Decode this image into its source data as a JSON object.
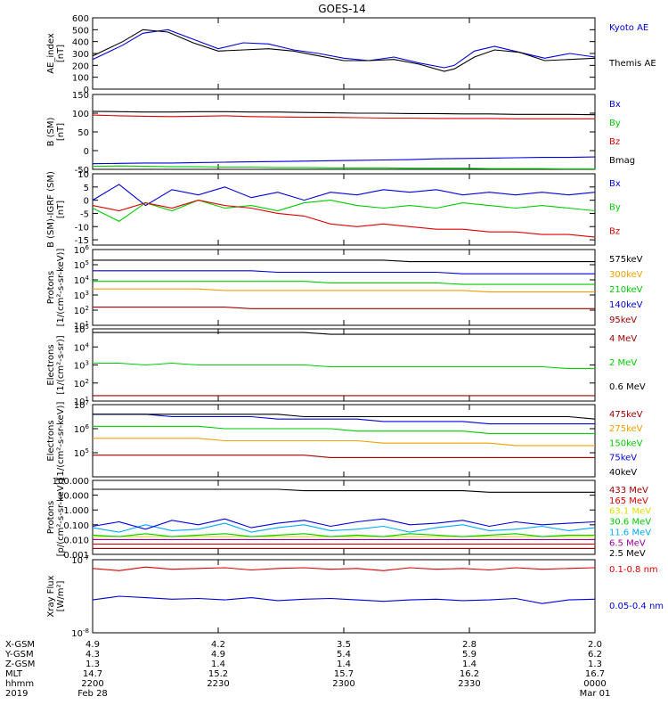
{
  "title": "GOES-14",
  "colors": {
    "black": "#000000",
    "blue": "#0000dd",
    "red": "#dd0000",
    "green": "#00cc00",
    "orange": "#f0a000",
    "cyan": "#00aaff",
    "yellow": "#dddd00",
    "purple": "#990099",
    "darkred": "#a00000"
  },
  "chart_data": [
    {
      "type": "line",
      "panel": "ae",
      "ylabel": "AE_index\n[nT]",
      "yscale": "linear",
      "ylim": [
        0,
        600
      ],
      "yticks": [
        "0",
        "100",
        "200",
        "300",
        "400",
        "500",
        "600"
      ],
      "series": [
        {
          "name": "Kyoto AE",
          "color": "blue",
          "x": [
            0,
            0.06,
            0.1,
            0.15,
            0.2,
            0.25,
            0.3,
            0.35,
            0.4,
            0.45,
            0.5,
            0.55,
            0.6,
            0.65,
            0.7,
            0.72,
            0.76,
            0.8,
            0.85,
            0.9,
            0.95,
            1.0
          ],
          "values": [
            250,
            370,
            470,
            500,
            420,
            340,
            390,
            380,
            330,
            300,
            260,
            240,
            270,
            220,
            180,
            200,
            320,
            360,
            310,
            260,
            300,
            270
          ]
        },
        {
          "name": "Themis AE",
          "color": "black",
          "x": [
            0,
            0.06,
            0.1,
            0.15,
            0.2,
            0.25,
            0.3,
            0.35,
            0.4,
            0.45,
            0.5,
            0.55,
            0.6,
            0.65,
            0.7,
            0.72,
            0.76,
            0.8,
            0.85,
            0.9,
            0.95,
            1.0
          ],
          "values": [
            280,
            400,
            500,
            480,
            390,
            320,
            330,
            340,
            320,
            280,
            240,
            240,
            250,
            210,
            150,
            170,
            270,
            330,
            310,
            240,
            250,
            260
          ]
        }
      ]
    },
    {
      "type": "line",
      "panel": "bsm",
      "ylabel": "B (SM)\n[nT]",
      "yscale": "linear",
      "ylim": [
        -50,
        150
      ],
      "yticks": [
        "-50",
        "0",
        "50",
        "100",
        "150"
      ],
      "series": [
        {
          "name": "Bx",
          "color": "blue",
          "values": [
            -35,
            -34,
            -33,
            -33,
            -32,
            -31,
            -30,
            -29,
            -28,
            -27,
            -26,
            -25,
            -24,
            -22,
            -21,
            -20,
            -19,
            -18,
            -18,
            -17
          ]
        },
        {
          "name": "By",
          "color": "green",
          "values": [
            -42,
            -41,
            -42,
            -43,
            -43,
            -44,
            -44,
            -45,
            -45,
            -46,
            -46,
            -46,
            -47,
            -47,
            -47,
            -48,
            -48,
            -48,
            -49,
            -49
          ]
        },
        {
          "name": "Bz",
          "color": "red",
          "values": [
            95,
            93,
            92,
            91,
            92,
            93,
            91,
            90,
            89,
            89,
            88,
            87,
            87,
            86,
            86,
            86,
            85,
            85,
            85,
            85
          ]
        },
        {
          "name": "Bmag",
          "color": "black",
          "values": [
            105,
            104,
            103,
            103,
            104,
            104,
            103,
            103,
            102,
            101,
            100,
            100,
            99,
            99,
            98,
            98,
            97,
            97,
            97,
            96
          ]
        }
      ]
    },
    {
      "type": "line",
      "panel": "bigrf",
      "ylabel": "B (SM)-IGRF (SM)\n[nT]",
      "yscale": "linear",
      "ylim": [
        -17,
        10
      ],
      "yticks": [
        "-15",
        "-10",
        "-5",
        "0",
        "5",
        "10"
      ],
      "series": [
        {
          "name": "Bx",
          "color": "blue",
          "values": [
            0,
            6,
            -2,
            4,
            2,
            5,
            1,
            3,
            0,
            3,
            2,
            4,
            3,
            4,
            2,
            3,
            2,
            3,
            2,
            3
          ]
        },
        {
          "name": "By",
          "color": "green",
          "values": [
            -3,
            -8,
            -1,
            -4,
            0,
            -3,
            -2,
            -4,
            -1,
            0,
            -2,
            -3,
            -2,
            -3,
            -1,
            -2,
            -3,
            -2,
            -3,
            -4
          ]
        },
        {
          "name": "Bz",
          "color": "red",
          "values": [
            -2,
            -4,
            -1,
            -3,
            0,
            -2,
            -3,
            -5,
            -6,
            -9,
            -10,
            -9,
            -10,
            -11,
            -11,
            -12,
            -12,
            -13,
            -13,
            -14
          ]
        }
      ]
    },
    {
      "type": "line",
      "panel": "protons1",
      "ylabel": "Protons\n[1/(cm²-s-sr-keV)]",
      "yscale": "log",
      "ylim": [
        1,
        6
      ],
      "yticks": [
        "10^1",
        "10^2",
        "10^3",
        "10^4",
        "10^5",
        "10^6"
      ],
      "series": [
        {
          "name": "575keV",
          "color": "black",
          "values": [
            5.3,
            5.3,
            5.3,
            5.3,
            5.3,
            5.3,
            5.3,
            5.3,
            5.3,
            5.3,
            5.3,
            5.3,
            5.2,
            5.2,
            5.2,
            5.2,
            5.2,
            5.2,
            5.2,
            5.2
          ]
        },
        {
          "name": "300keV",
          "color": "orange",
          "values": [
            3.4,
            3.4,
            3.4,
            3.4,
            3.4,
            3.3,
            3.3,
            3.3,
            3.3,
            3.3,
            3.3,
            3.3,
            3.3,
            3.3,
            3.3,
            3.2,
            3.2,
            3.2,
            3.2,
            3.2
          ]
        },
        {
          "name": "210keV",
          "color": "green",
          "values": [
            3.9,
            3.9,
            3.9,
            3.9,
            3.9,
            3.9,
            3.9,
            3.9,
            3.9,
            3.8,
            3.8,
            3.8,
            3.8,
            3.8,
            3.7,
            3.7,
            3.7,
            3.7,
            3.7,
            3.7
          ]
        },
        {
          "name": "140keV",
          "color": "blue",
          "values": [
            4.6,
            4.6,
            4.6,
            4.6,
            4.6,
            4.6,
            4.6,
            4.5,
            4.5,
            4.5,
            4.5,
            4.5,
            4.5,
            4.5,
            4.4,
            4.4,
            4.4,
            4.4,
            4.4,
            4.4
          ]
        },
        {
          "name": "95keV",
          "color": "darkred",
          "values": [
            2.2,
            2.2,
            2.2,
            2.2,
            2.2,
            2.2,
            2.1,
            2.1,
            2.1,
            2.1,
            2.1,
            2.1,
            2.1,
            2.1,
            2.1,
            2.1,
            2.1,
            2.1,
            2.1,
            2.1
          ]
        }
      ]
    },
    {
      "type": "line",
      "panel": "electrons1",
      "ylabel": "Electrons\n[1/(cm²-s-sr)]",
      "yscale": "log",
      "ylim": [
        1,
        5
      ],
      "yticks": [
        "10^1",
        "10^2",
        "10^3",
        "10^4",
        "10^5"
      ],
      "series": [
        {
          "name": "4 MeV",
          "color": "darkred",
          "values": [
            1.3,
            1.3,
            1.3,
            1.3,
            1.3,
            1.3,
            1.3,
            1.3,
            1.3,
            1.3,
            1.3,
            1.3,
            1.3,
            1.3,
            1.3,
            1.3,
            1.3,
            1.3,
            1.3,
            1.3
          ]
        },
        {
          "name": "2 MeV",
          "color": "green",
          "values": [
            3.1,
            3.1,
            3.0,
            3.1,
            3.0,
            3.0,
            3.0,
            3.0,
            3.0,
            2.9,
            2.9,
            2.9,
            2.9,
            2.9,
            2.9,
            2.9,
            2.9,
            2.9,
            2.8,
            2.8
          ]
        },
        {
          "name": "0.6 MeV",
          "color": "black",
          "values": [
            4.8,
            4.8,
            4.8,
            4.8,
            4.8,
            4.8,
            4.8,
            4.8,
            4.8,
            4.7,
            4.7,
            4.7,
            4.7,
            4.7,
            4.7,
            4.7,
            4.7,
            4.7,
            4.7,
            4.7
          ]
        }
      ]
    },
    {
      "type": "line",
      "panel": "electrons2",
      "ylabel": "Electrons\n[1/(cm²-s-sr-keV)]",
      "yscale": "log",
      "ylim": [
        4,
        7
      ],
      "yticks": [
        "10^5",
        "10^6",
        "10^7"
      ],
      "series": [
        {
          "name": "475keV",
          "color": "darkred",
          "values": [
            4.9,
            4.9,
            4.9,
            4.9,
            4.9,
            4.9,
            4.9,
            4.9,
            4.9,
            4.8,
            4.8,
            4.8,
            4.8,
            4.8,
            4.8,
            4.8,
            4.8,
            4.8,
            4.8,
            4.8
          ]
        },
        {
          "name": "275keV",
          "color": "orange",
          "values": [
            5.6,
            5.6,
            5.6,
            5.6,
            5.6,
            5.5,
            5.5,
            5.5,
            5.5,
            5.5,
            5.5,
            5.4,
            5.4,
            5.4,
            5.4,
            5.4,
            5.3,
            5.3,
            5.3,
            5.3
          ]
        },
        {
          "name": "150keV",
          "color": "green",
          "values": [
            6.1,
            6.1,
            6.1,
            6.1,
            6.1,
            6.0,
            6.0,
            6.0,
            6.0,
            6.0,
            5.9,
            5.9,
            5.9,
            5.9,
            5.9,
            5.8,
            5.8,
            5.8,
            5.8,
            5.8
          ]
        },
        {
          "name": "75keV",
          "color": "blue",
          "values": [
            6.6,
            6.6,
            6.6,
            6.5,
            6.5,
            6.5,
            6.5,
            6.4,
            6.4,
            6.4,
            6.4,
            6.3,
            6.3,
            6.3,
            6.3,
            6.2,
            6.2,
            6.2,
            6.2,
            6.2
          ]
        },
        {
          "name": "40keV",
          "color": "black",
          "values": [
            6.6,
            6.6,
            6.6,
            6.6,
            6.6,
            6.6,
            6.6,
            6.6,
            6.5,
            6.5,
            6.5,
            6.5,
            6.5,
            6.5,
            6.5,
            6.5,
            6.5,
            6.5,
            6.5,
            6.4
          ]
        }
      ]
    },
    {
      "type": "line",
      "panel": "protons2",
      "ylabel": "Protons\n[p/(cm²-s-sr-keV)]",
      "yscale": "log",
      "ylim": [
        -3,
        2
      ],
      "yticks": [
        "0.001",
        "0.010",
        "0.100",
        "1.000",
        "10.000",
        "100.000"
      ],
      "series": [
        {
          "name": "433 MeV",
          "color": "darkred",
          "values": [
            -2.6,
            -2.6,
            -2.6,
            -2.6,
            -2.6,
            -2.6,
            -2.6,
            -2.6,
            -2.6,
            -2.6,
            -2.6,
            -2.6,
            -2.6,
            -2.6,
            -2.6,
            -2.6,
            -2.6,
            -2.6,
            -2.6,
            -2.6
          ]
        },
        {
          "name": "165 MeV",
          "color": "red",
          "values": [
            -2.3,
            -2.3,
            -2.3,
            -2.3,
            -2.3,
            -2.3,
            -2.3,
            -2.3,
            -2.3,
            -2.3,
            -2.3,
            -2.3,
            -2.3,
            -2.3,
            -2.3,
            -2.3,
            -2.3,
            -2.3,
            -2.3,
            -2.3
          ]
        },
        {
          "name": "63.1 MeV",
          "color": "yellow",
          "values": [
            -1.8,
            -1.8,
            -1.8,
            -1.8,
            -1.8,
            -1.8,
            -1.8,
            -1.8,
            -1.8,
            -1.8,
            -1.8,
            -1.8,
            -1.8,
            -1.8,
            -1.8,
            -1.8,
            -1.8,
            -1.8,
            -1.8,
            -1.8
          ]
        },
        {
          "name": "30.6 MeV",
          "color": "green",
          "values": [
            -1.7,
            -1.8,
            -1.6,
            -1.8,
            -1.7,
            -1.6,
            -1.8,
            -1.7,
            -1.6,
            -1.8,
            -1.7,
            -1.8,
            -1.6,
            -1.7,
            -1.8,
            -1.7,
            -1.6,
            -1.8,
            -1.7,
            -1.7
          ]
        },
        {
          "name": "11.6 MeV",
          "color": "cyan",
          "values": [
            -1.2,
            -1.5,
            -1.0,
            -1.4,
            -1.3,
            -0.9,
            -1.5,
            -1.2,
            -1.0,
            -1.4,
            -1.3,
            -1.1,
            -1.5,
            -1.2,
            -1.0,
            -1.4,
            -1.3,
            -1.1,
            -1.4,
            -1.2
          ]
        },
        {
          "name": "6.5 MeV",
          "color": "purple",
          "values": [
            -2.0,
            -2.0,
            -2.0,
            -2.0,
            -2.0,
            -2.0,
            -2.0,
            -2.0,
            -2.0,
            -2.0,
            -2.0,
            -2.0,
            -2.0,
            -2.0,
            -2.0,
            -2.0,
            -2.0,
            -2.0,
            -2.0,
            -2.0
          ]
        },
        {
          "name": "2.5 MeV",
          "color": "black",
          "values": [
            1.4,
            1.4,
            1.4,
            1.4,
            1.4,
            1.4,
            1.4,
            1.4,
            1.3,
            1.3,
            1.3,
            1.3,
            1.3,
            1.3,
            1.3,
            1.2,
            1.2,
            1.2,
            1.2,
            1.2
          ]
        },
        {
          "name": "",
          "color": "blue",
          "values": [
            -1.1,
            -0.8,
            -1.3,
            -0.7,
            -1.0,
            -0.6,
            -1.2,
            -0.9,
            -0.7,
            -1.1,
            -0.8,
            -0.6,
            -1.0,
            -0.9,
            -0.7,
            -1.1,
            -0.8,
            -1.0,
            -0.9,
            -0.8
          ]
        }
      ]
    },
    {
      "type": "line",
      "panel": "xray",
      "ylabel": "Xray Flux\n[W/m²]",
      "yscale": "log",
      "ylim": [
        -8,
        -7
      ],
      "yticks": [
        "10^-8",
        "10^-7"
      ],
      "series": [
        {
          "name": "0.1-0.8 nm",
          "color": "red",
          "values": [
            -7.12,
            -7.15,
            -7.1,
            -7.13,
            -7.12,
            -7.11,
            -7.14,
            -7.12,
            -7.11,
            -7.13,
            -7.12,
            -7.15,
            -7.11,
            -7.13,
            -7.12,
            -7.14,
            -7.11,
            -7.13,
            -7.12,
            -7.11
          ]
        },
        {
          "name": "0.05-0.4 nm",
          "color": "blue",
          "values": [
            -7.55,
            -7.5,
            -7.52,
            -7.54,
            -7.53,
            -7.55,
            -7.52,
            -7.56,
            -7.54,
            -7.53,
            -7.55,
            -7.57,
            -7.55,
            -7.54,
            -7.56,
            -7.55,
            -7.53,
            -7.6,
            -7.55,
            -7.54
          ]
        }
      ]
    }
  ],
  "footer": {
    "rows": [
      {
        "label": "X-GSM",
        "values": [
          "4.9",
          "4.2",
          "3.5",
          "2.8",
          "2.0"
        ]
      },
      {
        "label": "Y-GSM",
        "values": [
          "4.3",
          "4.9",
          "5.4",
          "5.9",
          "6.2"
        ]
      },
      {
        "label": "Z-GSM",
        "values": [
          "1.3",
          "1.4",
          "1.4",
          "1.4",
          "1.3"
        ]
      },
      {
        "label": "MLT",
        "values": [
          "14.7",
          "15.2",
          "15.7",
          "16.2",
          "16.7"
        ]
      },
      {
        "label": "hhmm",
        "values": [
          "2200",
          "2230",
          "2300",
          "2330",
          "0000"
        ]
      },
      {
        "label": "2019",
        "values": [
          "Feb 28",
          "",
          "",
          "",
          "Mar 01"
        ]
      }
    ]
  }
}
